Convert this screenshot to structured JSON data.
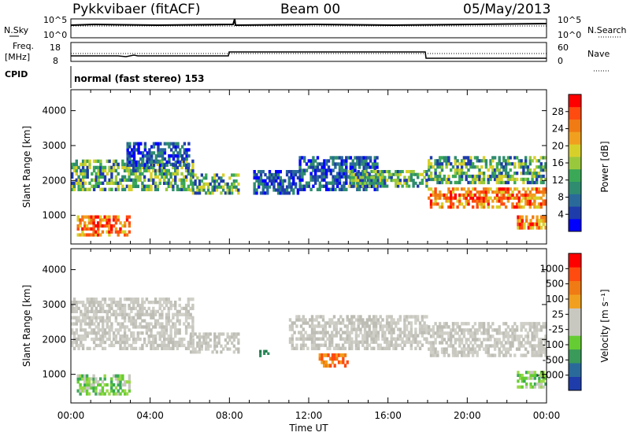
{
  "header": {
    "station": "Pykkvibaer (fitACF)",
    "beam": "Beam 00",
    "date": "05/May/2013"
  },
  "strip_panels": {
    "nsky_label": "N.Sky",
    "nsky_ticks": [
      "10^5",
      "10^0"
    ],
    "nsearch_label": "N.Search",
    "nsearch_ticks": [
      "10^5",
      "10^0"
    ],
    "freq_label_line1": "Freq.",
    "freq_label_line2": "[MHz]",
    "freq_ticks": [
      "18",
      "8"
    ],
    "nave_label": "Nave",
    "nave_ticks": [
      "60",
      "0"
    ],
    "cpid_label": "CPID",
    "cpid_text": "normal (fast stereo) 153"
  },
  "chart_data": [
    {
      "type": "heatmap",
      "title": "",
      "xlabel": "Time UT",
      "ylabel": "Slant Range [km]",
      "ylim": [
        180,
        4600
      ],
      "x_ticks": [
        "00:00",
        "04:00",
        "08:00",
        "12:00",
        "16:00",
        "20:00",
        "00:00"
      ],
      "y_ticks": [
        "1000",
        "2000",
        "3000",
        "4000"
      ],
      "colorbar": {
        "label": "Power [dB]",
        "ticks": [
          "4",
          "8",
          "12",
          "16",
          "20",
          "24",
          "28"
        ],
        "colors": [
          "#0000ff",
          "#1e3caa",
          "#2a6a9a",
          "#2f8c6f",
          "#3aa856",
          "#9ac83c",
          "#d8d02a",
          "#f0a01e",
          "#f07a14",
          "#ff4a10",
          "#ff0000"
        ]
      },
      "echo_regions": [
        {
          "t0": 0.0,
          "t1": 6.2,
          "r0": 1700,
          "r1": 2600,
          "level": "mid"
        },
        {
          "t0": 2.8,
          "t1": 6.0,
          "r0": 2400,
          "r1": 3100,
          "level": "low"
        },
        {
          "t0": 0.3,
          "t1": 3.0,
          "r0": 400,
          "r1": 1000,
          "level": "high"
        },
        {
          "t0": 6.0,
          "t1": 8.5,
          "r0": 1600,
          "r1": 2200,
          "level": "mid"
        },
        {
          "t0": 9.2,
          "t1": 11.5,
          "r0": 1600,
          "r1": 2300,
          "level": "low"
        },
        {
          "t0": 11.5,
          "t1": 15.5,
          "r0": 1700,
          "r1": 2700,
          "level": "low"
        },
        {
          "t0": 14.0,
          "t1": 18.0,
          "r0": 1800,
          "r1": 2300,
          "level": "mid"
        },
        {
          "t0": 18.0,
          "t1": 24.0,
          "r0": 1200,
          "r1": 1800,
          "level": "high"
        },
        {
          "t0": 18.0,
          "t1": 24.0,
          "r0": 1900,
          "r1": 2700,
          "level": "mid"
        },
        {
          "t0": 22.5,
          "t1": 24.0,
          "r0": 600,
          "r1": 1000,
          "level": "high"
        }
      ]
    },
    {
      "type": "heatmap",
      "title": "",
      "xlabel": "Time UT",
      "ylabel": "Slant Range [km]",
      "ylim": [
        180,
        4600
      ],
      "x_ticks": [
        "00:00",
        "04:00",
        "08:00",
        "12:00",
        "16:00",
        "20:00",
        "00:00"
      ],
      "y_ticks": [
        "1000",
        "2000",
        "3000",
        "4000"
      ],
      "colorbar": {
        "label": "Velocity [m s⁻¹]",
        "ticks": [
          "1000",
          "500",
          "100",
          "25",
          "-25",
          "-100",
          "-500",
          "-1000"
        ],
        "colors": [
          "#1e3caa",
          "#2a6a9a",
          "#3a9a5a",
          "#66cc33",
          "#c8c8c0",
          "#c8c8c0",
          "#f0a01e",
          "#f07a14",
          "#ff4a10",
          "#ff0000"
        ]
      },
      "echo_regions": [
        {
          "t0": 0.0,
          "t1": 6.2,
          "r0": 1700,
          "r1": 3200,
          "level": "grey"
        },
        {
          "t0": 0.3,
          "t1": 3.0,
          "r0": 400,
          "r1": 1000,
          "level": "green"
        },
        {
          "t0": 6.0,
          "t1": 8.5,
          "r0": 1600,
          "r1": 2200,
          "level": "grey"
        },
        {
          "t0": 9.5,
          "t1": 10.0,
          "r0": 1500,
          "r1": 1700,
          "level": "darkgreen"
        },
        {
          "t0": 12.5,
          "t1": 14.0,
          "r0": 1200,
          "r1": 1600,
          "level": "orange"
        },
        {
          "t0": 11.0,
          "t1": 18.0,
          "r0": 1700,
          "r1": 2700,
          "level": "grey"
        },
        {
          "t0": 18.0,
          "t1": 24.0,
          "r0": 1500,
          "r1": 2500,
          "level": "grey"
        },
        {
          "t0": 22.5,
          "t1": 24.0,
          "r0": 600,
          "r1": 1100,
          "level": "green"
        }
      ]
    }
  ]
}
